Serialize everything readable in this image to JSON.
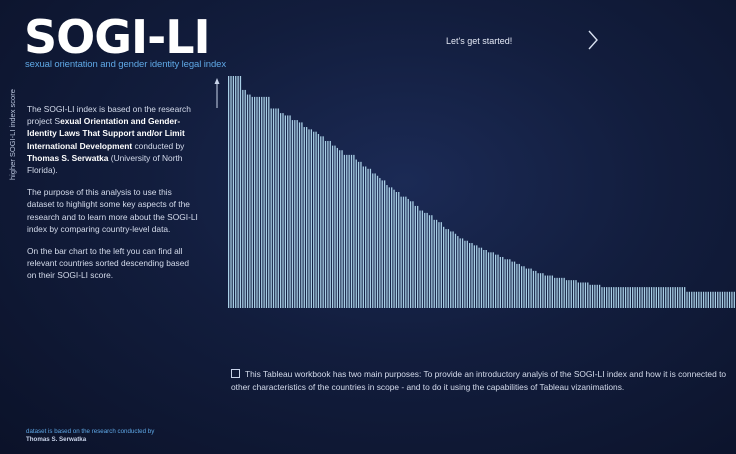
{
  "header": {
    "title": "SOGI-LI",
    "subtitle": "sexual orientation and gender identity legal index",
    "start_label": "Let's get started!"
  },
  "description": {
    "p1_a": "The SOGI-LI index is based on the research project S",
    "p1_bold": "exual Orientation and Gender-Identity Laws That Support and/or Limit International Development",
    "p1_b": " conducted by ",
    "p1_author": "Thomas S. Serwatka",
    "p1_c": " (University of North Florida).",
    "p2": "The purpose of this analysis to use this dataset to highlight some key aspects of the research and to learn more about the SOGI-LI index by comparing country-level data.",
    "p3": "On the bar chart to the left you can find all relevant countries sorted descending based on their SOGI-LI score."
  },
  "purpose_text": "This Tableau workbook has two main purposes: To provide an introductory analyis of the SOGI-LI index and how it is connected to other characteristics of the countries in scope - and to do it using the capabilities of Tableau vizanimations.",
  "footer": {
    "line1": "dataset is based on the research conducted by",
    "author": "Thomas S. Serwatka"
  },
  "colors": {
    "bar": "#a9cfe6",
    "accent": "#5fa8e6"
  },
  "chart_data": {
    "type": "bar",
    "ylabel": "higher SOGI-LI index score",
    "sorted": "descending",
    "grid": false,
    "values": [
      100,
      100,
      100,
      100,
      100,
      100,
      94,
      94,
      92,
      92,
      91,
      91,
      91,
      91,
      91,
      91,
      91,
      91,
      86,
      86,
      86,
      86,
      84,
      84,
      83,
      83,
      83,
      81,
      81,
      81,
      80,
      80,
      78,
      78,
      77,
      77,
      76,
      76,
      75,
      74,
      74,
      72,
      72,
      72,
      70,
      70,
      69,
      68,
      68,
      66,
      66,
      66,
      66,
      66,
      64,
      63,
      63,
      61,
      61,
      60,
      60,
      58,
      58,
      57,
      56,
      55,
      55,
      53,
      52,
      52,
      51,
      50,
      50,
      48,
      48,
      48,
      47,
      46,
      46,
      44,
      44,
      42,
      42,
      41,
      41,
      40,
      40,
      38,
      38,
      37,
      37,
      35,
      34,
      34,
      33,
      33,
      32,
      31,
      30,
      30,
      29,
      29,
      28,
      28,
      27,
      27,
      26,
      26,
      25,
      25,
      24,
      24,
      24,
      23,
      23,
      22,
      22,
      21,
      21,
      21,
      20,
      20,
      19,
      19,
      18,
      18,
      17,
      17,
      17,
      16,
      16,
      15,
      15,
      15,
      14,
      14,
      14,
      14,
      13,
      13,
      13,
      13,
      13,
      12,
      12,
      12,
      12,
      12,
      11,
      11,
      11,
      11,
      11,
      10,
      10,
      10,
      10,
      10,
      9,
      9,
      9,
      9,
      9,
      9,
      9,
      9,
      9,
      9,
      9,
      9,
      9,
      9,
      9,
      9,
      9,
      9,
      9,
      9,
      9,
      9,
      9,
      9,
      9,
      9,
      9,
      9,
      9,
      9,
      9,
      9,
      9,
      9,
      9,
      9,
      7,
      7,
      7,
      7,
      7,
      7,
      7,
      7,
      7,
      7,
      7,
      7,
      7,
      7,
      7,
      7,
      7,
      7,
      7,
      7,
      7
    ],
    "ylim": [
      0,
      100
    ]
  }
}
